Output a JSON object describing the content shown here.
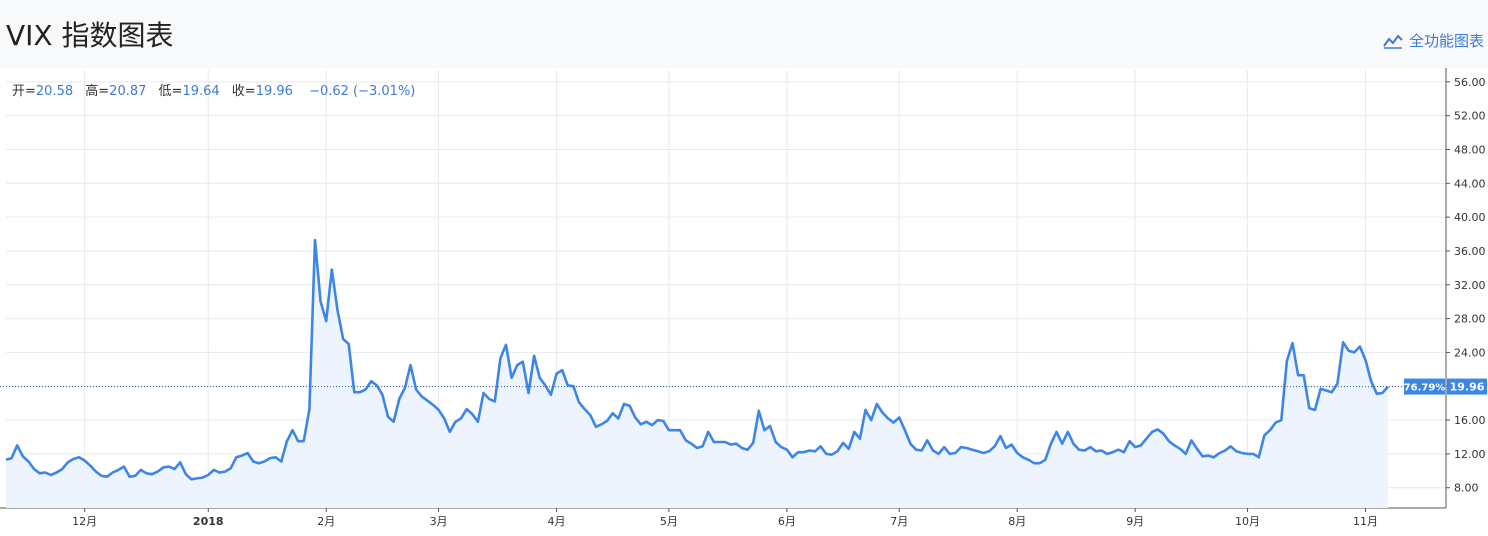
{
  "page": {
    "title": "VIX 指数图表",
    "full_chart_label": "全功能图表"
  },
  "ohlc": {
    "open_label": "开=",
    "open": "20.58",
    "high_label": "高=",
    "high": "20.87",
    "low_label": "低=",
    "low": "19.64",
    "close_label": "收=",
    "close": "19.96",
    "change": "−0.62 (−3.01%)"
  },
  "colors": {
    "line": "#3d86e6",
    "area": "#eef4fd",
    "grid": "#e6e9ee",
    "last_price_bg": "#3d86e6"
  },
  "last_price_tag": {
    "percent": "76.79%",
    "value": "19.96"
  },
  "chart_data": {
    "type": "area",
    "title": "",
    "xlabel": "",
    "ylabel": "",
    "ylim": [
      5.6,
      57.4
    ],
    "y_ticks": [
      "8.00",
      "12.00",
      "16.00",
      "20.00",
      "24.00",
      "28.00",
      "32.00",
      "36.00",
      "40.00",
      "44.00",
      "48.00",
      "52.00",
      "56.00"
    ],
    "x_ticks": [
      "12月",
      "2018",
      "2月",
      "3月",
      "4月",
      "5月",
      "6月",
      "7月",
      "8月",
      "9月",
      "10月",
      "11月"
    ],
    "x_tick_index": [
      14,
      36,
      57,
      77,
      98,
      118,
      139,
      159,
      180,
      201,
      221,
      242
    ],
    "grid": true,
    "series": [
      {
        "values": [
          11.3,
          11.5,
          13.0,
          11.7,
          11.1,
          10.2,
          9.7,
          9.8,
          9.5,
          9.8,
          10.2,
          11.0,
          11.4,
          11.6,
          11.2,
          10.6,
          9.9,
          9.4,
          9.3,
          9.8,
          10.1,
          10.5,
          9.3,
          9.4,
          10.1,
          9.7,
          9.6,
          9.9,
          10.4,
          10.5,
          10.2,
          11.0,
          9.6,
          9.0,
          9.1,
          9.2,
          9.5,
          10.1,
          9.8,
          9.9,
          10.3,
          11.6,
          11.8,
          12.1,
          11.1,
          10.9,
          11.1,
          11.5,
          11.6,
          11.1,
          13.5,
          14.8,
          13.5,
          13.5,
          17.3,
          37.3,
          30.0,
          27.7,
          33.8,
          29.0,
          25.6,
          25.0,
          19.3,
          19.3,
          19.6,
          20.6,
          20.1,
          19.0,
          16.4,
          15.8,
          18.5,
          19.8,
          22.5,
          19.6,
          18.8,
          18.3,
          17.8,
          17.2,
          16.2,
          14.6,
          15.8,
          16.2,
          17.3,
          16.7,
          15.8,
          19.2,
          18.5,
          18.2,
          23.3,
          24.9,
          21.0,
          22.5,
          22.9,
          19.2,
          23.6,
          21.0,
          20.1,
          19.0,
          21.5,
          21.9,
          20.1,
          20.0,
          18.1,
          17.3,
          16.6,
          15.2,
          15.5,
          15.9,
          16.8,
          16.2,
          17.9,
          17.7,
          16.3,
          15.5,
          15.8,
          15.4,
          16.0,
          15.9,
          14.8,
          14.8,
          14.8,
          13.6,
          13.2,
          12.7,
          12.9,
          14.6,
          13.4,
          13.4,
          13.4,
          13.1,
          13.2,
          12.7,
          12.5,
          13.3,
          17.1,
          14.8,
          15.3,
          13.4,
          12.8,
          12.5,
          11.6,
          12.2,
          12.2,
          12.4,
          12.3,
          12.9,
          12.0,
          11.9,
          12.3,
          13.3,
          12.6,
          14.6,
          13.8,
          17.2,
          16.0,
          17.9,
          16.9,
          16.2,
          15.7,
          16.3,
          14.8,
          13.2,
          12.5,
          12.4,
          13.6,
          12.4,
          12.0,
          12.8,
          12.0,
          12.1,
          12.8,
          12.7,
          12.5,
          12.3,
          12.1,
          12.3,
          12.9,
          14.1,
          12.7,
          13.1,
          12.1,
          11.6,
          11.3,
          10.9,
          10.9,
          11.3,
          13.2,
          14.6,
          13.2,
          14.6,
          13.2,
          12.5,
          12.4,
          12.8,
          12.3,
          12.4,
          12.0,
          12.2,
          12.5,
          12.2,
          13.5,
          12.8,
          13.0,
          13.8,
          14.6,
          14.9,
          14.4,
          13.5,
          13.0,
          12.6,
          12.0,
          13.6,
          12.6,
          11.7,
          11.8,
          11.6,
          12.1,
          12.4,
          12.9,
          12.3,
          12.1,
          12.0,
          12.0,
          11.6,
          14.2,
          14.8,
          15.7,
          16.0,
          23.0,
          25.1,
          21.3,
          21.3,
          17.4,
          17.2,
          19.7,
          19.5,
          19.3,
          20.3,
          25.2,
          24.2,
          24.0,
          24.7,
          23.1,
          20.6,
          19.1,
          19.2,
          19.96
        ]
      }
    ]
  }
}
